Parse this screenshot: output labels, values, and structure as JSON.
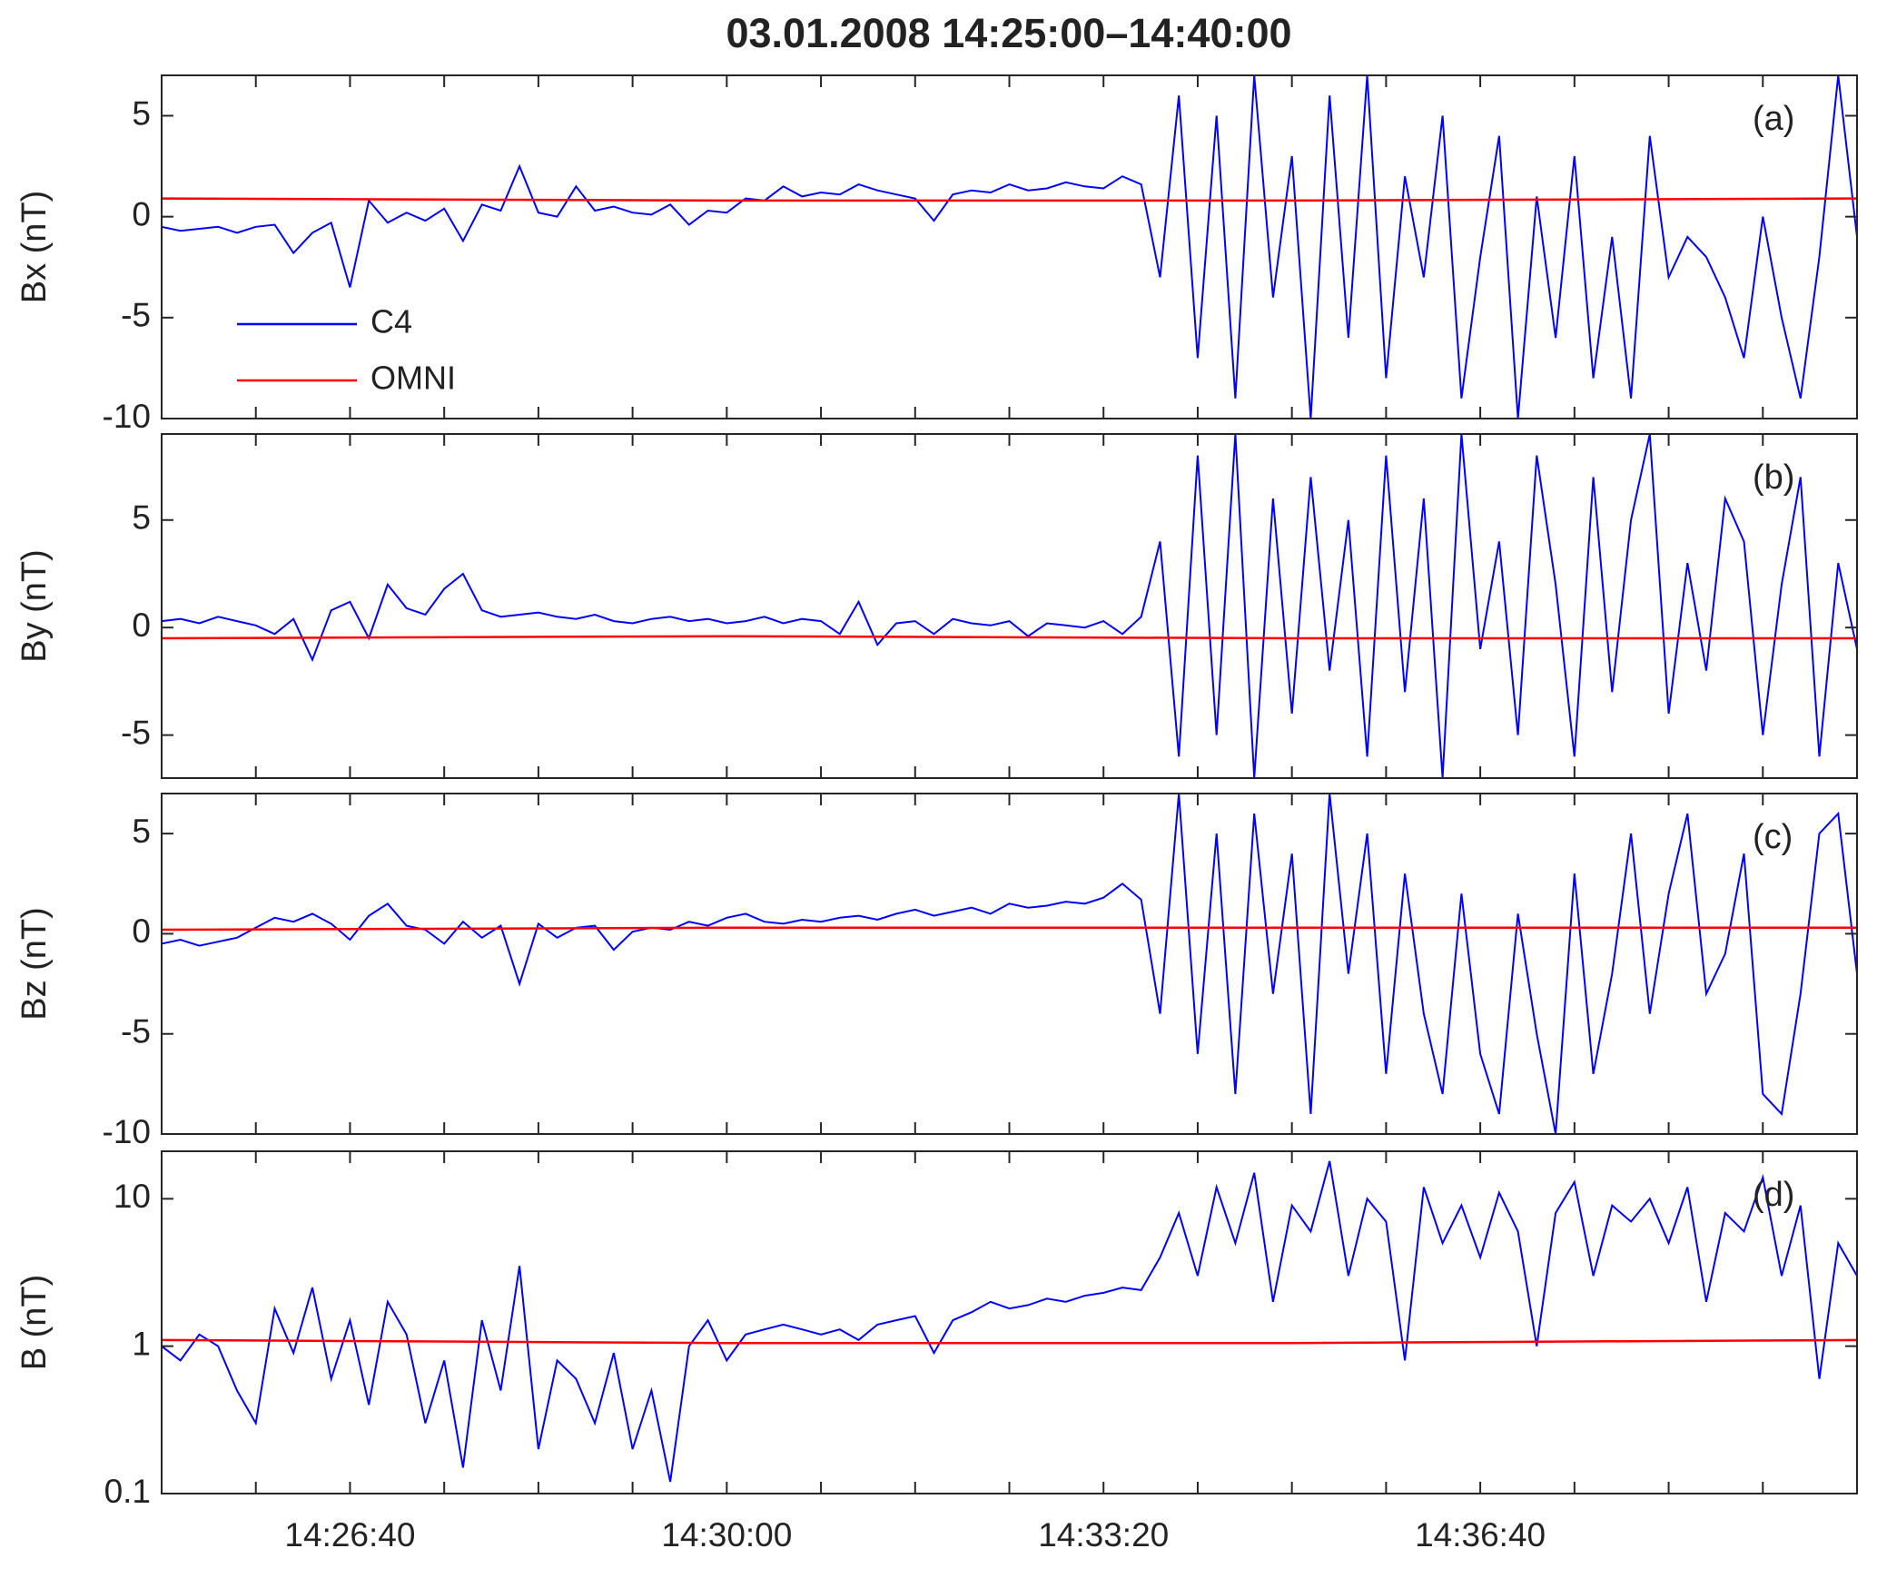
{
  "title": "03.01.2008 14:25:00–14:40:00",
  "chart_data": [
    {
      "type": "line",
      "ylabel": "Bx (nT)",
      "annotation": "(a)",
      "legend": "lower left",
      "x": [
        "14:25:00",
        "14:25:10",
        "14:25:20",
        "14:25:30",
        "14:25:40",
        "14:25:50",
        "14:26:00",
        "14:26:10",
        "14:26:20",
        "14:26:30",
        "14:26:40",
        "14:26:50",
        "14:27:00",
        "14:27:10",
        "14:27:20",
        "14:27:30",
        "14:27:40",
        "14:27:50",
        "14:28:00",
        "14:28:10",
        "14:28:20",
        "14:28:30",
        "14:28:40",
        "14:28:50",
        "14:29:00",
        "14:29:10",
        "14:29:20",
        "14:29:30",
        "14:29:40",
        "14:29:50",
        "14:30:00",
        "14:30:10",
        "14:30:20",
        "14:30:30",
        "14:30:40",
        "14:30:50",
        "14:31:00",
        "14:31:10",
        "14:31:20",
        "14:31:30",
        "14:31:40",
        "14:31:50",
        "14:32:00",
        "14:32:10",
        "14:32:20",
        "14:32:30",
        "14:32:40",
        "14:32:50",
        "14:33:00",
        "14:33:10",
        "14:33:20",
        "14:33:30",
        "14:33:40",
        "14:33:50",
        "14:34:00",
        "14:34:10",
        "14:34:20",
        "14:34:30",
        "14:34:40",
        "14:34:50",
        "14:35:00",
        "14:35:10",
        "14:35:20",
        "14:35:30",
        "14:35:40",
        "14:35:50",
        "14:36:00",
        "14:36:10",
        "14:36:20",
        "14:36:30",
        "14:36:40",
        "14:36:50",
        "14:37:00",
        "14:37:10",
        "14:37:20",
        "14:37:30",
        "14:37:40",
        "14:37:50",
        "14:38:00",
        "14:38:10",
        "14:38:20",
        "14:38:30",
        "14:38:40",
        "14:38:50",
        "14:39:00",
        "14:39:10",
        "14:39:20",
        "14:39:30",
        "14:39:40",
        "14:39:50",
        "14:40:00"
      ],
      "series": [
        {
          "name": "C4",
          "color": "#0000ff",
          "values": [
            -0.5,
            -0.7,
            -0.6,
            -0.5,
            -0.8,
            -0.5,
            -0.4,
            -1.8,
            -0.8,
            -0.3,
            -3.5,
            0.8,
            -0.3,
            0.2,
            -0.2,
            0.4,
            -1.2,
            0.6,
            0.3,
            2.5,
            0.2,
            0.0,
            1.5,
            0.3,
            0.5,
            0.2,
            0.1,
            0.6,
            -0.4,
            0.3,
            0.2,
            0.9,
            0.8,
            1.5,
            1.0,
            1.2,
            1.1,
            1.6,
            1.3,
            1.1,
            0.9,
            -0.2,
            1.1,
            1.3,
            1.2,
            1.6,
            1.3,
            1.4,
            1.7,
            1.5,
            1.4,
            2.0,
            1.6,
            -3,
            6,
            -7,
            5,
            -9,
            7,
            -4,
            3,
            -10,
            6,
            -6,
            7,
            -8,
            2,
            -3,
            5,
            -9,
            -2,
            4,
            -10,
            1,
            -6,
            3,
            -8,
            -1,
            -9,
            4,
            -3,
            -1,
            -2,
            -4,
            -7,
            0,
            -5,
            -9,
            -2,
            7,
            -1
          ]
        },
        {
          "name": "OMNI",
          "color": "#ff0000",
          "x": [
            "14:25:00",
            "14:30:00",
            "14:35:00",
            "14:40:00"
          ],
          "values": [
            0.9,
            0.8,
            0.8,
            0.9
          ]
        }
      ],
      "xlim": [
        "14:25:00",
        "14:40:00"
      ],
      "xticks": [
        "14:26:40",
        "14:30:00",
        "14:33:20",
        "14:36:40"
      ],
      "minor_xticks": [
        "14:25:50",
        "14:27:30",
        "14:28:20",
        "14:29:10",
        "14:30:50",
        "14:31:40",
        "14:32:30",
        "14:34:10",
        "14:35:00",
        "14:35:50",
        "14:37:30",
        "14:38:20",
        "14:39:10"
      ],
      "ylim": [
        -10,
        7
      ],
      "yticks": [
        -10,
        -5,
        0,
        5
      ]
    },
    {
      "type": "line",
      "ylabel": "By (nT)",
      "annotation": "(b)",
      "x": [
        "14:25:00",
        "14:25:10",
        "14:25:20",
        "14:25:30",
        "14:25:40",
        "14:25:50",
        "14:26:00",
        "14:26:10",
        "14:26:20",
        "14:26:30",
        "14:26:40",
        "14:26:50",
        "14:27:00",
        "14:27:10",
        "14:27:20",
        "14:27:30",
        "14:27:40",
        "14:27:50",
        "14:28:00",
        "14:28:10",
        "14:28:20",
        "14:28:30",
        "14:28:40",
        "14:28:50",
        "14:29:00",
        "14:29:10",
        "14:29:20",
        "14:29:30",
        "14:29:40",
        "14:29:50",
        "14:30:00",
        "14:30:10",
        "14:30:20",
        "14:30:30",
        "14:30:40",
        "14:30:50",
        "14:31:00",
        "14:31:10",
        "14:31:20",
        "14:31:30",
        "14:31:40",
        "14:31:50",
        "14:32:00",
        "14:32:10",
        "14:32:20",
        "14:32:30",
        "14:32:40",
        "14:32:50",
        "14:33:00",
        "14:33:10",
        "14:33:20",
        "14:33:30",
        "14:33:40",
        "14:33:50",
        "14:34:00",
        "14:34:10",
        "14:34:20",
        "14:34:30",
        "14:34:40",
        "14:34:50",
        "14:35:00",
        "14:35:10",
        "14:35:20",
        "14:35:30",
        "14:35:40",
        "14:35:50",
        "14:36:00",
        "14:36:10",
        "14:36:20",
        "14:36:30",
        "14:36:40",
        "14:36:50",
        "14:37:00",
        "14:37:10",
        "14:37:20",
        "14:37:30",
        "14:37:40",
        "14:37:50",
        "14:38:00",
        "14:38:10",
        "14:38:20",
        "14:38:30",
        "14:38:40",
        "14:38:50",
        "14:39:00",
        "14:39:10",
        "14:39:20",
        "14:39:30",
        "14:39:40",
        "14:39:50",
        "14:40:00"
      ],
      "series": [
        {
          "color": "#0000ff",
          "values": [
            0.3,
            0.4,
            0.2,
            0.5,
            0.3,
            0.1,
            -0.3,
            0.4,
            -1.5,
            0.8,
            1.2,
            -0.5,
            2.0,
            0.9,
            0.6,
            1.8,
            2.5,
            0.8,
            0.5,
            0.6,
            0.7,
            0.5,
            0.4,
            0.6,
            0.3,
            0.2,
            0.4,
            0.5,
            0.3,
            0.4,
            0.2,
            0.3,
            0.5,
            0.2,
            0.4,
            0.3,
            -0.3,
            1.2,
            -0.8,
            0.2,
            0.3,
            -0.3,
            0.4,
            0.2,
            0.1,
            0.3,
            -0.4,
            0.2,
            0.1,
            0.0,
            0.3,
            -0.3,
            0.5,
            4,
            -6,
            8,
            -5,
            9,
            -7,
            6,
            -4,
            7,
            -2,
            5,
            -6,
            8,
            -3,
            6,
            -7,
            9,
            -1,
            4,
            -5,
            8,
            2,
            -6,
            7,
            -3,
            5,
            9,
            -4,
            3,
            -2,
            6,
            4,
            -5,
            2,
            7,
            -6,
            3,
            -1
          ]
        },
        {
          "color": "#ff0000",
          "x": [
            "14:25:00",
            "14:30:00",
            "14:35:00",
            "14:40:00"
          ],
          "values": [
            -0.5,
            -0.4,
            -0.5,
            -0.5
          ]
        }
      ],
      "xlim": [
        "14:25:00",
        "14:40:00"
      ],
      "xticks": [
        "14:26:40",
        "14:30:00",
        "14:33:20",
        "14:36:40"
      ],
      "minor_xticks": [
        "14:25:50",
        "14:27:30",
        "14:28:20",
        "14:29:10",
        "14:30:50",
        "14:31:40",
        "14:32:30",
        "14:34:10",
        "14:35:00",
        "14:35:50",
        "14:37:30",
        "14:38:20",
        "14:39:10"
      ],
      "ylim": [
        -7,
        9
      ],
      "yticks": [
        -5,
        0,
        5
      ]
    },
    {
      "type": "line",
      "ylabel": "Bz (nT)",
      "annotation": "(c)",
      "x": [
        "14:25:00",
        "14:25:10",
        "14:25:20",
        "14:25:30",
        "14:25:40",
        "14:25:50",
        "14:26:00",
        "14:26:10",
        "14:26:20",
        "14:26:30",
        "14:26:40",
        "14:26:50",
        "14:27:00",
        "14:27:10",
        "14:27:20",
        "14:27:30",
        "14:27:40",
        "14:27:50",
        "14:28:00",
        "14:28:10",
        "14:28:20",
        "14:28:30",
        "14:28:40",
        "14:28:50",
        "14:29:00",
        "14:29:10",
        "14:29:20",
        "14:29:30",
        "14:29:40",
        "14:29:50",
        "14:30:00",
        "14:30:10",
        "14:30:20",
        "14:30:30",
        "14:30:40",
        "14:30:50",
        "14:31:00",
        "14:31:10",
        "14:31:20",
        "14:31:30",
        "14:31:40",
        "14:31:50",
        "14:32:00",
        "14:32:10",
        "14:32:20",
        "14:32:30",
        "14:32:40",
        "14:32:50",
        "14:33:00",
        "14:33:10",
        "14:33:20",
        "14:33:30",
        "14:33:40",
        "14:33:50",
        "14:34:00",
        "14:34:10",
        "14:34:20",
        "14:34:30",
        "14:34:40",
        "14:34:50",
        "14:35:00",
        "14:35:10",
        "14:35:20",
        "14:35:30",
        "14:35:40",
        "14:35:50",
        "14:36:00",
        "14:36:10",
        "14:36:20",
        "14:36:30",
        "14:36:40",
        "14:36:50",
        "14:37:00",
        "14:37:10",
        "14:37:20",
        "14:37:30",
        "14:37:40",
        "14:37:50",
        "14:38:00",
        "14:38:10",
        "14:38:20",
        "14:38:30",
        "14:38:40",
        "14:38:50",
        "14:39:00",
        "14:39:10",
        "14:39:20",
        "14:39:30",
        "14:39:40",
        "14:39:50",
        "14:40:00"
      ],
      "series": [
        {
          "color": "#0000ff",
          "values": [
            -0.5,
            -0.3,
            -0.6,
            -0.4,
            -0.2,
            0.3,
            0.8,
            0.6,
            1.0,
            0.5,
            -0.3,
            0.9,
            1.5,
            0.4,
            0.2,
            -0.5,
            0.6,
            -0.2,
            0.4,
            -2.5,
            0.5,
            -0.2,
            0.3,
            0.4,
            -0.8,
            0.1,
            0.3,
            0.2,
            0.6,
            0.4,
            0.8,
            1.0,
            0.6,
            0.5,
            0.7,
            0.6,
            0.8,
            0.9,
            0.7,
            1.0,
            1.2,
            0.9,
            1.1,
            1.3,
            1.0,
            1.5,
            1.3,
            1.4,
            1.6,
            1.5,
            1.8,
            2.5,
            1.7,
            -4,
            7,
            -6,
            5,
            -8,
            6,
            -3,
            4,
            -9,
            7,
            -2,
            5,
            -7,
            3,
            -4,
            -8,
            2,
            -6,
            -9,
            1,
            -5,
            -10,
            3,
            -7,
            -2,
            5,
            -4,
            2,
            6,
            -3,
            -1,
            4,
            -8,
            -9,
            -3,
            5,
            6,
            -2
          ]
        },
        {
          "color": "#ff0000",
          "x": [
            "14:25:00",
            "14:30:00",
            "14:35:00",
            "14:40:00"
          ],
          "values": [
            0.2,
            0.3,
            0.3,
            0.3
          ]
        }
      ],
      "xlim": [
        "14:25:00",
        "14:40:00"
      ],
      "xticks": [
        "14:26:40",
        "14:30:00",
        "14:33:20",
        "14:36:40"
      ],
      "minor_xticks": [
        "14:25:50",
        "14:27:30",
        "14:28:20",
        "14:29:10",
        "14:30:50",
        "14:31:40",
        "14:32:30",
        "14:34:10",
        "14:35:00",
        "14:35:50",
        "14:37:30",
        "14:38:20",
        "14:39:10"
      ],
      "ylim": [
        -10,
        7
      ],
      "yticks": [
        -10,
        -5,
        0,
        5
      ]
    },
    {
      "type": "line",
      "ylabel": "B (nT)",
      "annotation": "(d)",
      "yscale": "log",
      "x": [
        "14:25:00",
        "14:25:10",
        "14:25:20",
        "14:25:30",
        "14:25:40",
        "14:25:50",
        "14:26:00",
        "14:26:10",
        "14:26:20",
        "14:26:30",
        "14:26:40",
        "14:26:50",
        "14:27:00",
        "14:27:10",
        "14:27:20",
        "14:27:30",
        "14:27:40",
        "14:27:50",
        "14:28:00",
        "14:28:10",
        "14:28:20",
        "14:28:30",
        "14:28:40",
        "14:28:50",
        "14:29:00",
        "14:29:10",
        "14:29:20",
        "14:29:30",
        "14:29:40",
        "14:29:50",
        "14:30:00",
        "14:30:10",
        "14:30:20",
        "14:30:30",
        "14:30:40",
        "14:30:50",
        "14:31:00",
        "14:31:10",
        "14:31:20",
        "14:31:30",
        "14:31:40",
        "14:31:50",
        "14:32:00",
        "14:32:10",
        "14:32:20",
        "14:32:30",
        "14:32:40",
        "14:32:50",
        "14:33:00",
        "14:33:10",
        "14:33:20",
        "14:33:30",
        "14:33:40",
        "14:33:50",
        "14:34:00",
        "14:34:10",
        "14:34:20",
        "14:34:30",
        "14:34:40",
        "14:34:50",
        "14:35:00",
        "14:35:10",
        "14:35:20",
        "14:35:30",
        "14:35:40",
        "14:35:50",
        "14:36:00",
        "14:36:10",
        "14:36:20",
        "14:36:30",
        "14:36:40",
        "14:36:50",
        "14:37:00",
        "14:37:10",
        "14:37:20",
        "14:37:30",
        "14:37:40",
        "14:37:50",
        "14:38:00",
        "14:38:10",
        "14:38:20",
        "14:38:30",
        "14:38:40",
        "14:38:50",
        "14:39:00",
        "14:39:10",
        "14:39:20",
        "14:39:30",
        "14:39:40",
        "14:39:50",
        "14:40:00"
      ],
      "series": [
        {
          "color": "#0000ff",
          "values": [
            1.0,
            0.8,
            1.2,
            1.0,
            0.5,
            0.3,
            1.8,
            0.9,
            2.5,
            0.6,
            1.5,
            0.4,
            2.0,
            1.2,
            0.3,
            0.8,
            0.15,
            1.5,
            0.5,
            3.5,
            0.2,
            0.8,
            0.6,
            0.3,
            0.9,
            0.2,
            0.5,
            0.12,
            1.0,
            1.5,
            0.8,
            1.2,
            1.3,
            1.4,
            1.3,
            1.2,
            1.3,
            1.1,
            1.4,
            1.5,
            1.6,
            0.9,
            1.5,
            1.7,
            2.0,
            1.8,
            1.9,
            2.1,
            2.0,
            2.2,
            2.3,
            2.5,
            2.4,
            4,
            8,
            3,
            12,
            5,
            15,
            2,
            9,
            6,
            18,
            3,
            10,
            7,
            0.8,
            12,
            5,
            9,
            4,
            11,
            6,
            1,
            8,
            13,
            3,
            9,
            7,
            10,
            5,
            12,
            2,
            8,
            6,
            14,
            3,
            9,
            0.6,
            5,
            3
          ]
        },
        {
          "color": "#ff0000",
          "x": [
            "14:25:00",
            "14:30:00",
            "14:35:00",
            "14:40:00"
          ],
          "values": [
            1.1,
            1.05,
            1.05,
            1.1
          ]
        }
      ],
      "xlim": [
        "14:25:00",
        "14:40:00"
      ],
      "xticks": [
        "14:26:40",
        "14:30:00",
        "14:33:20",
        "14:36:40"
      ],
      "minor_xticks": [
        "14:25:50",
        "14:27:30",
        "14:28:20",
        "14:29:10",
        "14:30:50",
        "14:31:40",
        "14:32:30",
        "14:34:10",
        "14:35:00",
        "14:35:50",
        "14:37:30",
        "14:38:20",
        "14:39:10"
      ],
      "ylim": [
        0.1,
        21
      ],
      "yticks": [
        0.1,
        1,
        10
      ]
    }
  ]
}
